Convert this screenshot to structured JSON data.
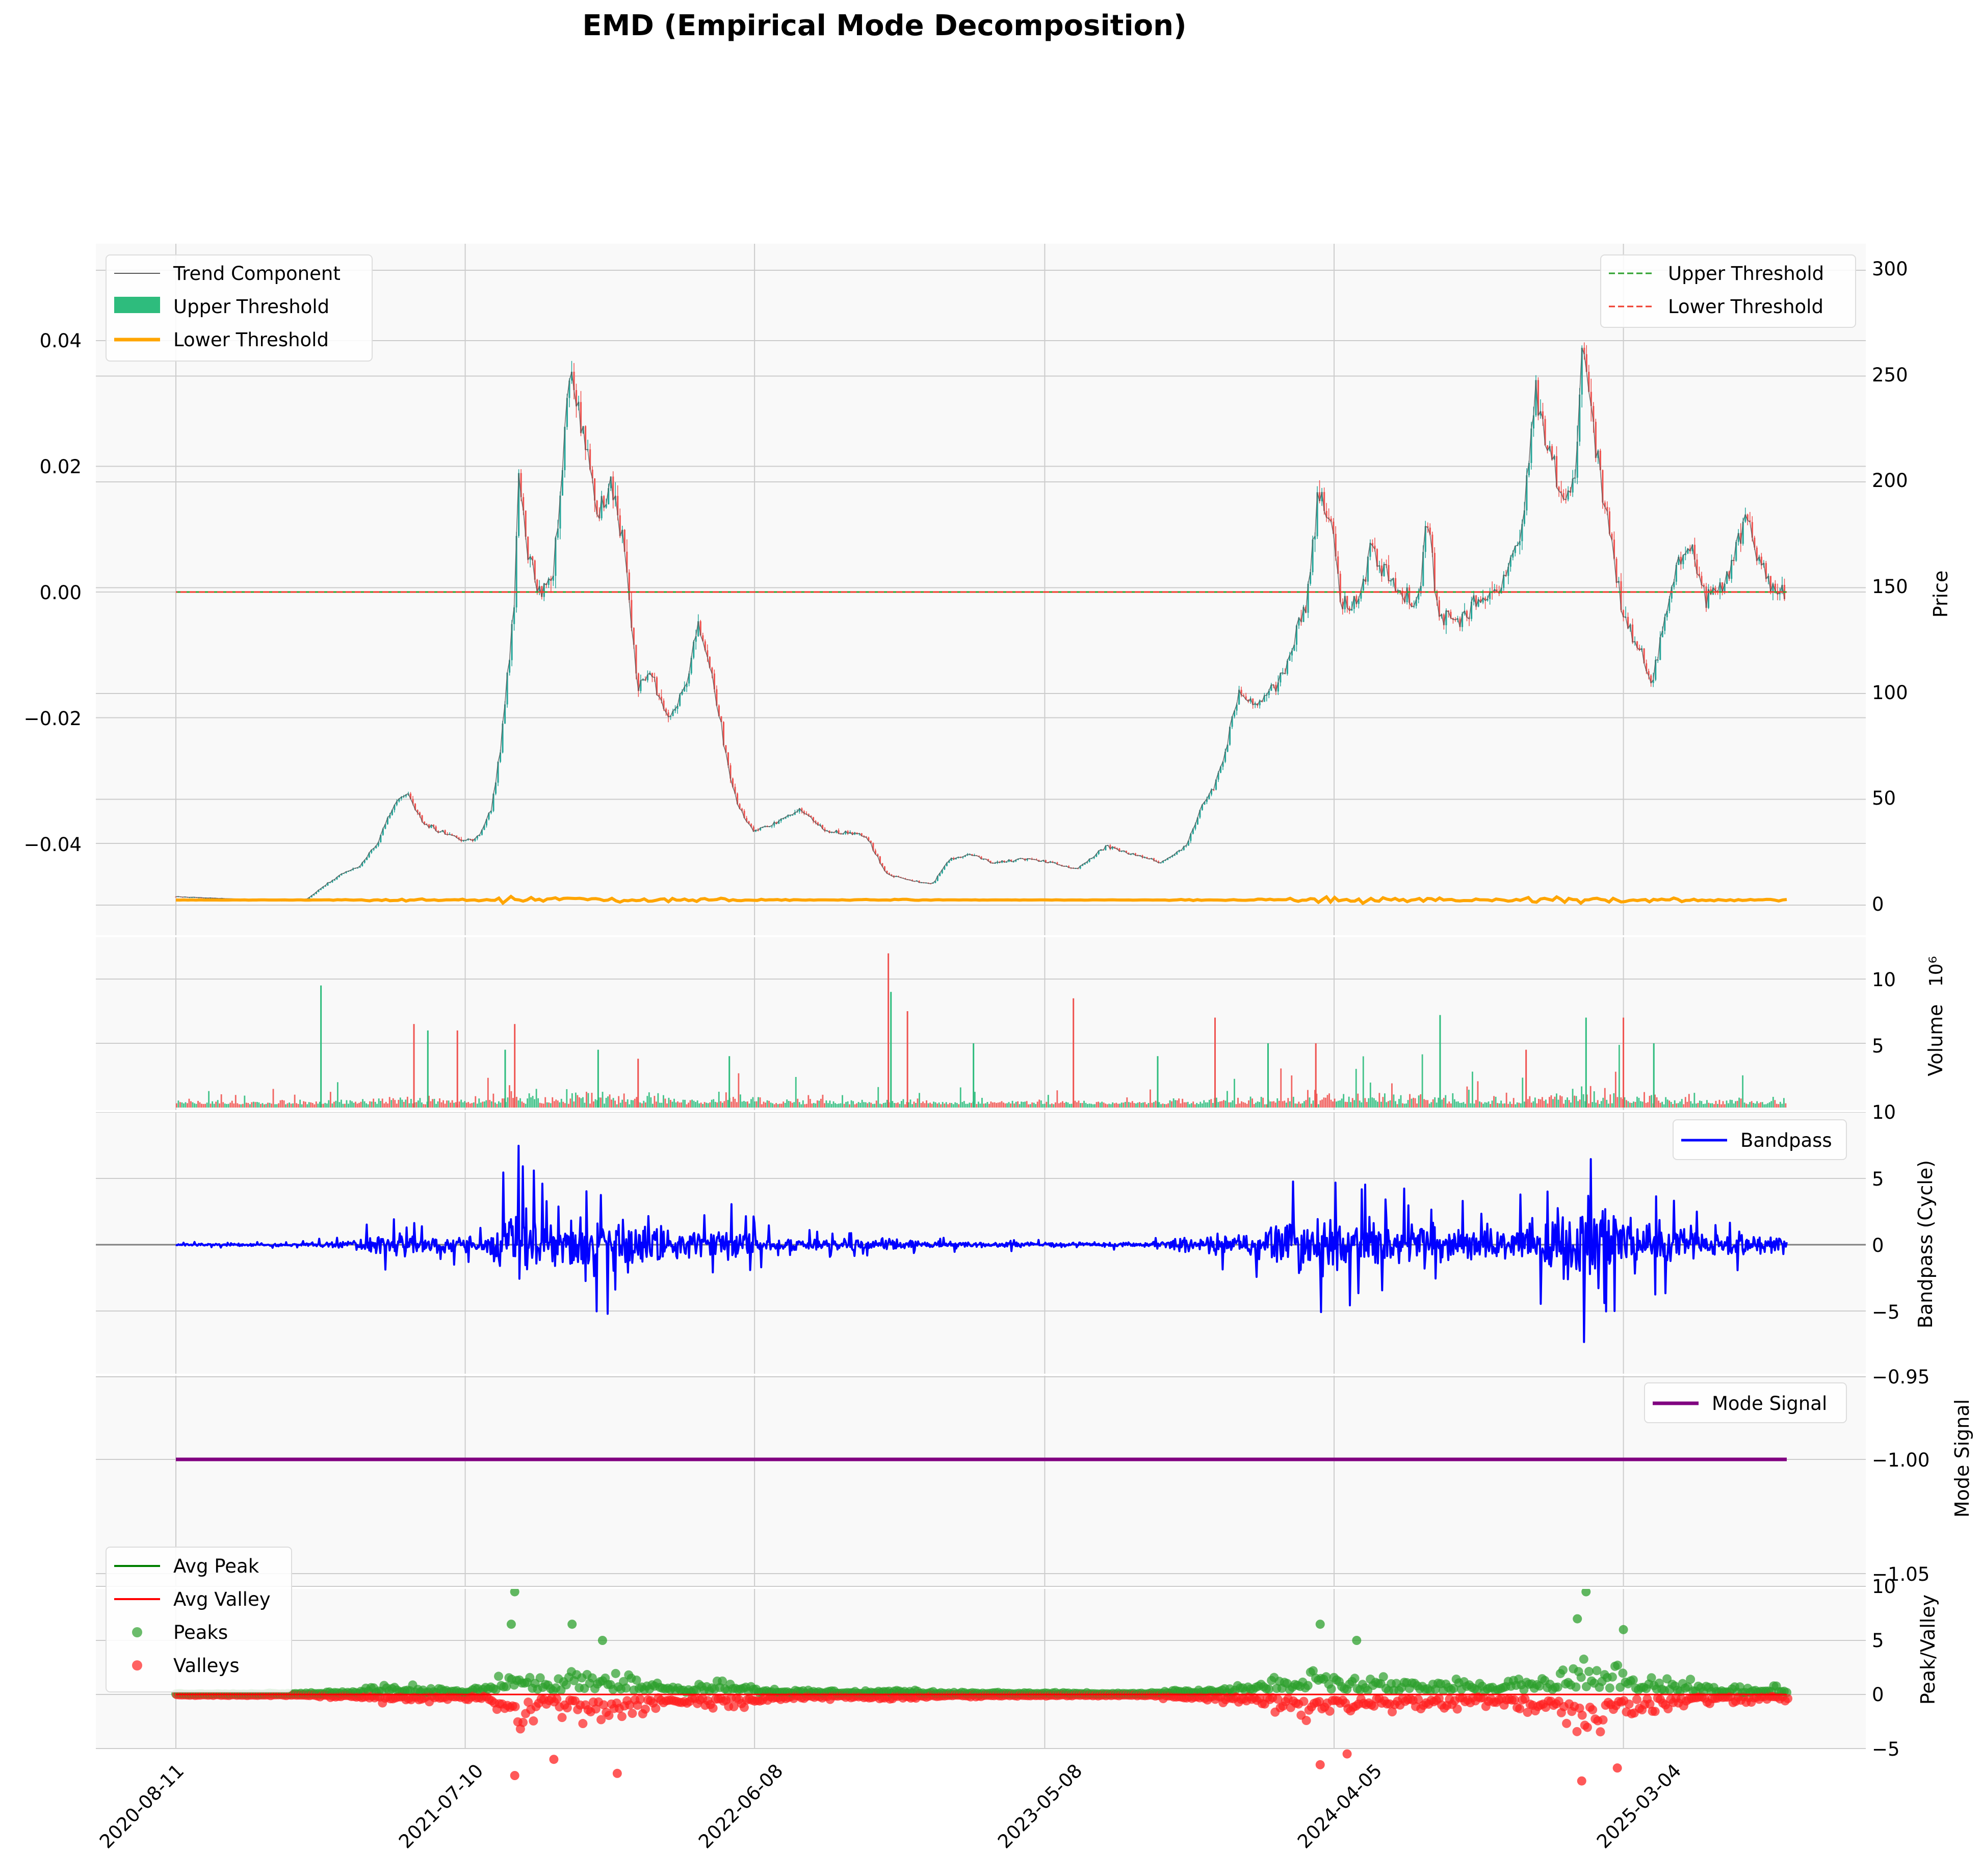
{
  "title": "EMD (Empirical Mode Decomposition)",
  "colors": {
    "panel_bg": "#f9f9f9",
    "grid": "#cccccc",
    "trend": "#555555",
    "up_candle": "#26a69a",
    "down_candle": "#ef5350",
    "volume_up": "#2ebc7d",
    "lower_threshold_line": "#ffa500",
    "upper_threshold_dash": "#2ca02c",
    "lower_threshold_dash": "#ef3b2c",
    "bandpass": "#0000ff",
    "mode_signal": "#800080",
    "avg_peak": "#008000",
    "avg_valley": "#ff0000",
    "peaks": "#2ca02c",
    "valleys": "#ff2020"
  },
  "x_axis": {
    "tick_labels": [
      "2020-08-11",
      "2021-07-10",
      "2022-06-08",
      "2023-05-08",
      "2024-04-05",
      "2025-03-04"
    ]
  },
  "panels": {
    "price": {
      "ylabel_right": "Price",
      "left_ticks": [
        "0.04",
        "0.02",
        "0.00",
        "−0.02",
        "−0.04"
      ],
      "right_ticks": [
        "300",
        "250",
        "200",
        "150",
        "100",
        "50",
        "0"
      ],
      "legend_left": [
        "Trend Component",
        "Upper Threshold",
        "Lower Threshold"
      ],
      "legend_right": [
        "Upper Threshold",
        "Lower Threshold"
      ]
    },
    "volume": {
      "ylabel_right": "Volume",
      "exponent_label": "10⁶",
      "right_ticks": [
        "10",
        "5"
      ]
    },
    "bandpass": {
      "ylabel_right": "Bandpass (Cycle)",
      "right_ticks": [
        "10",
        "5",
        "0",
        "−5"
      ],
      "legend": [
        "Bandpass"
      ]
    },
    "mode": {
      "ylabel_right": "Mode Signal",
      "right_ticks": [
        "−0.95",
        "−1.00",
        "−1.05"
      ],
      "legend": [
        "Mode Signal"
      ]
    },
    "peakvalley": {
      "ylabel_right": "Peak/Valley",
      "right_ticks": [
        "10",
        "5",
        "0",
        "−5"
      ],
      "legend": [
        "Avg Peak",
        "Avg Valley",
        "Peaks",
        "Valleys"
      ]
    }
  },
  "chart_data": [
    {
      "type": "line",
      "name": "price",
      "x_range": [
        "2020-08-11",
        "2025-09-08"
      ],
      "y_right_range": [
        0,
        300
      ],
      "y_left_range": [
        -0.05,
        0.05
      ],
      "price_knots": [
        [
          "2020-08-11",
          4
        ],
        [
          "2020-10-15",
          3
        ],
        [
          "2020-12-15",
          2
        ],
        [
          "2021-01-10",
          3
        ],
        [
          "2021-02-01",
          10
        ],
        [
          "2021-02-20",
          15
        ],
        [
          "2021-03-10",
          18
        ],
        [
          "2021-04-01",
          30
        ],
        [
          "2021-04-20",
          48
        ],
        [
          "2021-05-05",
          52
        ],
        [
          "2021-05-25",
          38
        ],
        [
          "2021-06-15",
          35
        ],
        [
          "2021-07-10",
          30
        ],
        [
          "2021-07-25",
          32
        ],
        [
          "2021-08-10",
          45
        ],
        [
          "2021-08-20",
          75
        ],
        [
          "2021-09-05",
          140
        ],
        [
          "2021-09-10",
          205
        ],
        [
          "2021-09-20",
          170
        ],
        [
          "2021-10-05",
          145
        ],
        [
          "2021-10-20",
          160
        ],
        [
          "2021-11-05",
          235
        ],
        [
          "2021-11-10",
          255
        ],
        [
          "2021-11-25",
          220
        ],
        [
          "2021-12-10",
          185
        ],
        [
          "2021-12-25",
          200
        ],
        [
          "2022-01-10",
          170
        ],
        [
          "2022-01-25",
          105
        ],
        [
          "2022-02-10",
          110
        ],
        [
          "2022-03-01",
          88
        ],
        [
          "2022-03-20",
          100
        ],
        [
          "2022-04-05",
          135
        ],
        [
          "2022-04-20",
          110
        ],
        [
          "2022-05-10",
          65
        ],
        [
          "2022-05-20",
          48
        ],
        [
          "2022-06-08",
          35
        ],
        [
          "2022-07-01",
          38
        ],
        [
          "2022-08-01",
          45
        ],
        [
          "2022-09-01",
          35
        ],
        [
          "2022-10-15",
          33
        ],
        [
          "2022-11-08",
          15
        ],
        [
          "2022-12-01",
          12
        ],
        [
          "2022-12-31",
          10
        ],
        [
          "2023-01-20",
          22
        ],
        [
          "2023-02-15",
          24
        ],
        [
          "2023-03-10",
          20
        ],
        [
          "2023-04-15",
          22
        ],
        [
          "2023-05-08",
          21
        ],
        [
          "2023-06-15",
          17
        ],
        [
          "2023-07-20",
          28
        ],
        [
          "2023-08-20",
          24
        ],
        [
          "2023-09-20",
          20
        ],
        [
          "2023-10-20",
          28
        ],
        [
          "2023-11-05",
          45
        ],
        [
          "2023-11-25",
          60
        ],
        [
          "2023-12-20",
          100
        ],
        [
          "2024-01-10",
          95
        ],
        [
          "2024-02-10",
          110
        ],
        [
          "2024-03-05",
          140
        ],
        [
          "2024-03-20",
          195
        ],
        [
          "2024-04-05",
          180
        ],
        [
          "2024-04-15",
          140
        ],
        [
          "2024-05-05",
          145
        ],
        [
          "2024-05-20",
          170
        ],
        [
          "2024-06-15",
          150
        ],
        [
          "2024-07-10",
          140
        ],
        [
          "2024-07-25",
          185
        ],
        [
          "2024-08-05",
          135
        ],
        [
          "2024-09-01",
          135
        ],
        [
          "2024-09-20",
          145
        ],
        [
          "2024-10-15",
          150
        ],
        [
          "2024-11-10",
          175
        ],
        [
          "2024-11-25",
          245
        ],
        [
          "2024-12-10",
          220
        ],
        [
          "2024-12-25",
          190
        ],
        [
          "2025-01-10",
          200
        ],
        [
          "2025-01-19",
          270
        ],
        [
          "2025-01-28",
          235
        ],
        [
          "2025-02-10",
          195
        ],
        [
          "2025-02-25",
          160
        ],
        [
          "2025-03-04",
          140
        ],
        [
          "2025-03-20",
          125
        ],
        [
          "2025-04-08",
          105
        ],
        [
          "2025-04-25",
          140
        ],
        [
          "2025-05-10",
          165
        ],
        [
          "2025-05-25",
          170
        ],
        [
          "2025-06-10",
          145
        ],
        [
          "2025-06-25",
          150
        ],
        [
          "2025-07-10",
          160
        ],
        [
          "2025-07-25",
          185
        ],
        [
          "2025-08-10",
          165
        ],
        [
          "2025-08-25",
          150
        ],
        [
          "2025-09-08",
          148
        ]
      ],
      "threshold_line": 0.0,
      "lower_threshold_line": -0.049
    },
    {
      "type": "bar",
      "name": "volume",
      "x_range": [
        "2020-08-11",
        "2025-09-08"
      ],
      "ylim": [
        0,
        12
      ],
      "spikes": [
        [
          "2021-01-25",
          9.5
        ],
        [
          "2021-05-12",
          6.5
        ],
        [
          "2021-05-28",
          6.0
        ],
        [
          "2021-07-01",
          6.0
        ],
        [
          "2021-08-25",
          4.5
        ],
        [
          "2021-09-05",
          6.5
        ],
        [
          "2021-12-10",
          4.5
        ],
        [
          "2022-01-25",
          3.8
        ],
        [
          "2022-05-10",
          4.0
        ],
        [
          "2022-11-09",
          12.0
        ],
        [
          "2022-11-12",
          9.0
        ],
        [
          "2022-12-01",
          7.5
        ],
        [
          "2023-02-15",
          5.0
        ],
        [
          "2023-06-10",
          8.5
        ],
        [
          "2023-09-15",
          4.0
        ],
        [
          "2023-11-20",
          7.0
        ],
        [
          "2024-01-20",
          5.0
        ],
        [
          "2024-03-15",
          5.0
        ],
        [
          "2024-08-05",
          7.2
        ],
        [
          "2024-11-12",
          4.5
        ],
        [
          "2025-01-20",
          7.0
        ],
        [
          "2025-03-04",
          7.0
        ],
        [
          "2025-04-08",
          5.0
        ]
      ]
    },
    {
      "type": "line",
      "name": "Bandpass",
      "x_range": [
        "2020-08-11",
        "2025-09-08"
      ],
      "ylim": [
        -9,
        10
      ],
      "amplitude_envelope": [
        [
          "2020-08-11",
          0.2
        ],
        [
          "2021-01-01",
          0.3
        ],
        [
          "2021-03-01",
          0.9
        ],
        [
          "2021-04-15",
          2.3
        ],
        [
          "2021-06-15",
          1.5
        ],
        [
          "2021-08-01",
          1.5
        ],
        [
          "2021-09-05",
          8.5
        ],
        [
          "2021-10-15",
          3.5
        ],
        [
          "2021-11-10",
          6.5
        ],
        [
          "2021-12-15",
          5.0
        ],
        [
          "2022-01-25",
          5.0
        ],
        [
          "2022-03-15",
          2.5
        ],
        [
          "2022-05-10",
          3.5
        ],
        [
          "2022-07-01",
          1.2
        ],
        [
          "2022-10-01",
          1.0
        ],
        [
          "2022-11-10",
          1.3
        ],
        [
          "2023-01-01",
          0.6
        ],
        [
          "2023-05-08",
          0.4
        ],
        [
          "2023-09-01",
          0.4
        ],
        [
          "2023-10-25",
          1.5
        ],
        [
          "2024-01-10",
          2.5
        ],
        [
          "2024-03-20",
          6.5
        ],
        [
          "2024-05-01",
          4.5
        ],
        [
          "2024-08-05",
          4.0
        ],
        [
          "2024-10-01",
          2.5
        ],
        [
          "2024-12-01",
          5.0
        ],
        [
          "2025-01-20",
          8.5
        ],
        [
          "2025-03-01",
          6.0
        ],
        [
          "2025-04-15",
          4.0
        ],
        [
          "2025-06-15",
          2.0
        ],
        [
          "2025-09-08",
          2.0
        ]
      ]
    },
    {
      "type": "line",
      "name": "Mode Signal",
      "x_range": [
        "2020-08-11",
        "2025-09-08"
      ],
      "ylim": [
        -1.05,
        -0.95
      ],
      "value": -1.0
    },
    {
      "type": "scatter",
      "name": "Peaks/Valleys",
      "x_range": [
        "2020-08-11",
        "2025-09-08"
      ],
      "ylim": [
        -9,
        10
      ],
      "avg_peak": 0.0,
      "avg_valley": 0.0,
      "highlight_points": {
        "peaks": [
          [
            "2021-09-05",
            9.5
          ],
          [
            "2021-09-01",
            6.5
          ],
          [
            "2021-11-10",
            6.5
          ],
          [
            "2021-12-15",
            5.0
          ],
          [
            "2024-03-20",
            6.5
          ],
          [
            "2024-05-01",
            5.0
          ],
          [
            "2025-01-20",
            9.5
          ],
          [
            "2025-01-10",
            7.0
          ],
          [
            "2025-03-04",
            6.0
          ]
        ],
        "valleys": [
          [
            "2021-09-05",
            -7.5
          ],
          [
            "2021-10-20",
            -6.0
          ],
          [
            "2022-01-01",
            -7.3
          ],
          [
            "2024-03-20",
            -6.5
          ],
          [
            "2024-04-20",
            -5.5
          ],
          [
            "2025-01-15",
            -8.0
          ],
          [
            "2025-02-25",
            -6.8
          ]
        ]
      }
    }
  ]
}
